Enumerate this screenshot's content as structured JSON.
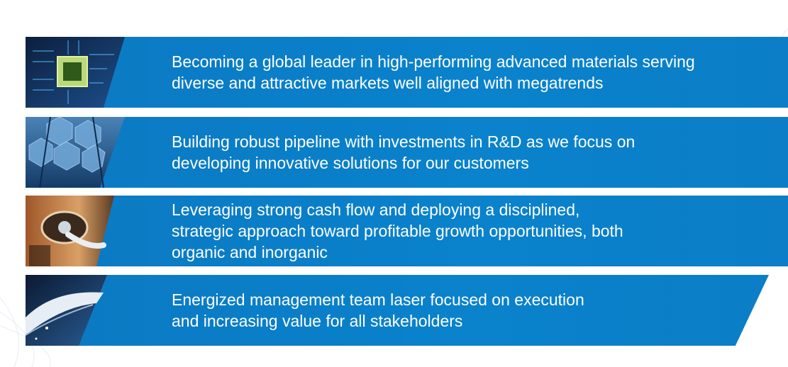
{
  "slide": {
    "items": [
      {
        "text": "Becoming a global leader in high-performing advanced materials serving\ndiverse and attractive markets well aligned with megatrends",
        "image": "microchip-icon"
      },
      {
        "text": "Building robust pipeline with investments in R&D as we focus on\ndeveloping innovative solutions for our customers",
        "image": "hexagon-structure-icon"
      },
      {
        "text": "Leveraging strong cash flow and deploying a disciplined,\nstrategic approach toward profitable growth opportunities, both\norganic and inorganic",
        "image": "ev-charger-icon"
      },
      {
        "text": "Energized management team laser focused on execution\nand increasing value for all stakeholders",
        "image": "aircraft-icon"
      }
    ],
    "colors": {
      "band": "#0b7ec7",
      "text": "#ffffff"
    }
  }
}
